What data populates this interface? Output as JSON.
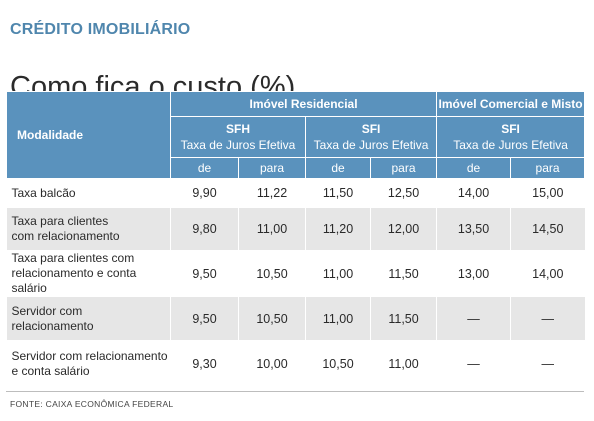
{
  "kicker": "CRÉDITO IMOBILIÁRIO",
  "title": "Como fica o custo (%)",
  "header": {
    "modalidade": "Modalidade",
    "residencial": "Imóvel Residencial",
    "comercial": "Imóvel Comercial e Misto",
    "systems": [
      {
        "name": "SFH",
        "sub": "Taxa de Juros Efetiva"
      },
      {
        "name": "SFI",
        "sub": "Taxa de Juros Efetiva"
      },
      {
        "name": "SFI",
        "sub": "Taxa de Juros Efetiva"
      }
    ],
    "de": "de",
    "para": "para"
  },
  "rows": [
    {
      "line1": "Taxa balcão",
      "line2": "",
      "values": [
        "9,90",
        "11,22",
        "11,50",
        "12,50",
        "14,00",
        "15,00"
      ]
    },
    {
      "line1": "Taxa para clientes",
      "line2": "com relacionamento",
      "values": [
        "9,80",
        "11,00",
        "11,20",
        "12,00",
        "13,50",
        "14,50"
      ]
    },
    {
      "line1": "Taxa para clientes com",
      "line2": "relacionamento e conta salário",
      "values": [
        "9,50",
        "10,50",
        "11,00",
        "11,50",
        "13,00",
        "14,00"
      ]
    },
    {
      "line1": "Servidor com",
      "line2": "relacionamento",
      "values": [
        "9,50",
        "10,50",
        "11,00",
        "11,50",
        "—",
        "—"
      ]
    },
    {
      "line1": "Servidor com relacionamento",
      "line2": "e conta salário",
      "values": [
        "9,30",
        "10,00",
        "10,50",
        "11,00",
        "—",
        "—"
      ]
    }
  ],
  "source": "FONTE:  CAIXA ECONÔMICA FEDERAL"
}
